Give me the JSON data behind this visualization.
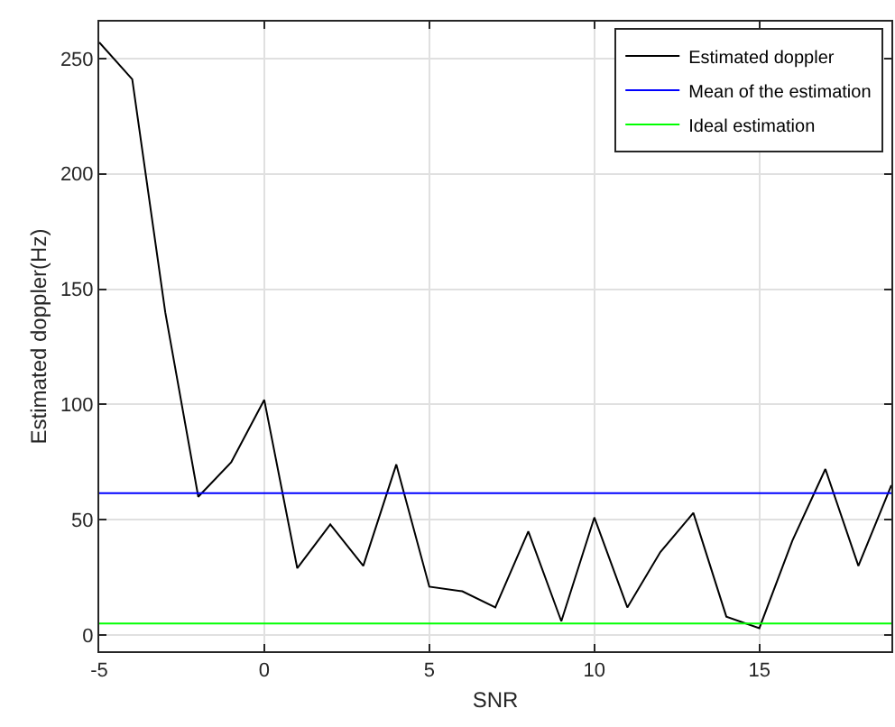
{
  "chart_data": {
    "type": "line",
    "xlabel": "SNR",
    "ylabel": "Estimated doppler(Hz)",
    "x": [
      -5,
      -4,
      -3,
      -2,
      -1,
      0,
      1,
      2,
      3,
      4,
      5,
      6,
      7,
      8,
      9,
      10,
      11,
      12,
      13,
      14,
      15,
      16,
      17,
      18,
      19
    ],
    "series": [
      {
        "name": "Estimated doppler",
        "color": "#000000",
        "values": [
          257,
          241,
          140,
          60,
          75,
          102,
          29,
          48,
          30,
          74,
          21,
          19,
          12,
          45,
          6,
          51,
          12,
          36,
          53,
          8,
          3,
          41,
          72,
          30,
          65
        ]
      }
    ],
    "ref_lines": [
      {
        "axis": "y",
        "value": 61.5,
        "label": "Mean of the estimation",
        "color": "#0000ff"
      },
      {
        "axis": "y",
        "value": 5,
        "label": "Ideal estimation",
        "color": "#00ff00"
      }
    ],
    "xlim": [
      -5,
      19
    ],
    "xticks": [
      -5,
      0,
      5,
      10,
      15
    ],
    "ylim": [
      -7,
      266
    ],
    "yticks": [
      0,
      50,
      100,
      150,
      200,
      250
    ],
    "grid": true,
    "legend": "top right",
    "marker": "none",
    "line_style": "solid"
  }
}
